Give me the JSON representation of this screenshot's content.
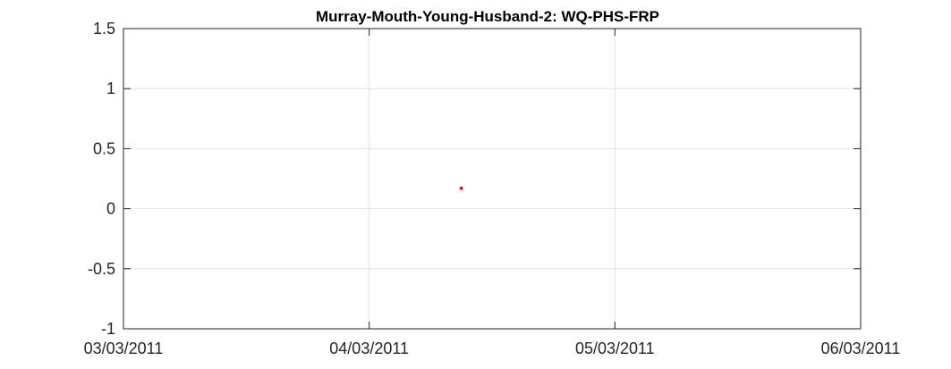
{
  "chart_data": {
    "type": "scatter",
    "title": "Murray-Mouth-Young-Husband-2: WQ-PHS-FRP",
    "xlabel": "",
    "ylabel": "",
    "x_ticks": [
      "03/03/2011",
      "04/03/2011",
      "05/03/2011",
      "06/03/2011"
    ],
    "y_ticks": [
      "-1",
      "-0.5",
      "0",
      "0.5",
      "1",
      "1.5"
    ],
    "xlim": [
      "03/03/2011",
      "06/03/2011"
    ],
    "ylim": [
      -1,
      1.5
    ],
    "grid": true,
    "legend": "none",
    "series": [
      {
        "color": "#e8112d",
        "points": [
          {
            "x": "04/03/2011 09:00",
            "y": 0.17
          }
        ]
      }
    ]
  }
}
